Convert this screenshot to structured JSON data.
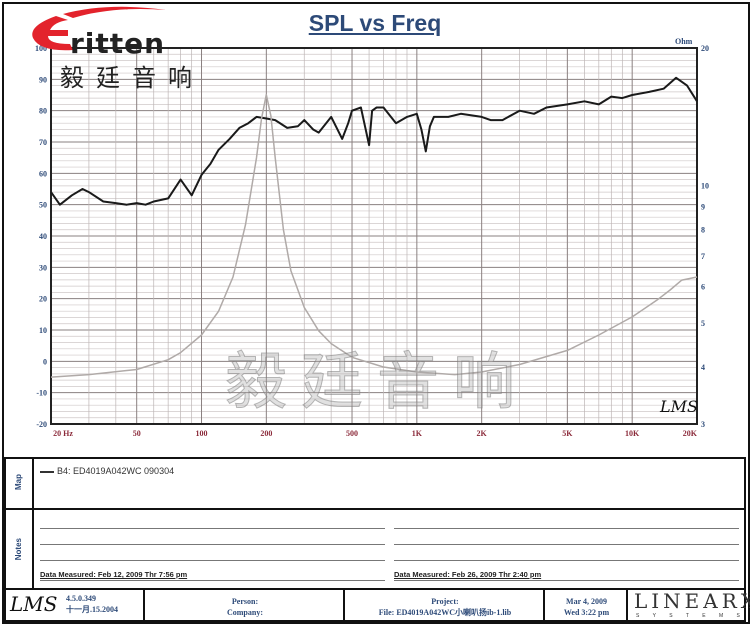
{
  "logo": {
    "brand": "ritten",
    "chinese": "毅廷音响"
  },
  "watermark": "毅廷音响",
  "chart_data": {
    "type": "line",
    "title": "SPL vs Freq",
    "x_scale": "log",
    "xlim": [
      20,
      20000
    ],
    "x_ticks": [
      {
        "v": 20,
        "label": "20 Hz"
      },
      {
        "v": 50,
        "label": "50"
      },
      {
        "v": 100,
        "label": "100"
      },
      {
        "v": 200,
        "label": "200"
      },
      {
        "v": 500,
        "label": "500"
      },
      {
        "v": 1000,
        "label": "1K"
      },
      {
        "v": 2000,
        "label": "2K"
      },
      {
        "v": 5000,
        "label": "5K"
      },
      {
        "v": 10000,
        "label": "10K"
      },
      {
        "v": 20000,
        "label": "20K"
      }
    ],
    "ylim": [
      -20,
      100
    ],
    "y_ticks": [
      100,
      90,
      80,
      70,
      60,
      50,
      40,
      30,
      20,
      10,
      0,
      -10,
      -20
    ],
    "y2_label": "Ohm",
    "y2_scale": "log",
    "y2lim": [
      3,
      20
    ],
    "y2_ticks": [
      20,
      10,
      9,
      8,
      7,
      6,
      5,
      4,
      3
    ],
    "grid": true,
    "series": [
      {
        "name": "B4: ED4019A042WC   090304",
        "axis": "left",
        "color": "#1a1a1a",
        "x": [
          20,
          22,
          25,
          28,
          30,
          35,
          40,
          45,
          50,
          55,
          60,
          70,
          80,
          90,
          100,
          110,
          120,
          135,
          150,
          165,
          180,
          200,
          220,
          250,
          280,
          300,
          330,
          350,
          400,
          450,
          480,
          500,
          550,
          600,
          620,
          650,
          700,
          800,
          900,
          1000,
          1050,
          1100,
          1150,
          1200,
          1400,
          1600,
          2000,
          2200,
          2500,
          3000,
          3500,
          4000,
          5000,
          6000,
          7000,
          8000,
          9000,
          10000,
          12000,
          14000,
          16000,
          18000,
          20000
        ],
        "y": [
          54,
          50,
          53,
          55,
          54,
          51,
          50.5,
          50,
          50.5,
          50,
          51,
          52,
          58,
          53,
          59.5,
          63,
          67.5,
          71,
          74.5,
          76,
          78,
          77.5,
          77,
          74.5,
          75,
          77,
          74,
          73,
          78,
          71,
          76,
          80,
          81,
          69,
          80,
          81,
          81,
          76,
          78,
          79,
          74,
          67,
          75,
          78,
          78,
          79,
          78,
          77,
          77,
          80,
          79,
          81,
          82,
          83,
          82,
          84.5,
          84,
          85,
          86,
          87,
          90.5,
          88,
          83
        ]
      },
      {
        "name": "impedance",
        "axis": "right",
        "color": "#b0aaa8",
        "x": [
          20,
          30,
          50,
          70,
          80,
          100,
          120,
          140,
          160,
          180,
          190,
          200,
          210,
          220,
          240,
          260,
          300,
          350,
          400,
          500,
          700,
          1000,
          1500,
          2000,
          3000,
          5000,
          7000,
          10000,
          13000,
          15000,
          17000,
          20000
        ],
        "y": [
          3.8,
          3.85,
          3.95,
          4.15,
          4.3,
          4.7,
          5.3,
          6.3,
          8.2,
          11.5,
          14,
          15.8,
          14.2,
          11.5,
          8,
          6.5,
          5.4,
          4.8,
          4.5,
          4.2,
          4.0,
          3.9,
          3.85,
          3.9,
          4.05,
          4.35,
          4.7,
          5.15,
          5.6,
          5.9,
          6.2,
          6.3
        ]
      }
    ]
  },
  "map": {
    "label": "Map",
    "legend": "B4: ED4019A042WC   090304"
  },
  "notes": {
    "label": "Notes",
    "left_measured": "Data Measured: Feb 12, 2009  Thr  7:56 pm",
    "right_measured": "Data Measured: Feb 26, 2009  Thr  2:40 pm"
  },
  "footer": {
    "lms": "LMS",
    "version": "4.5.0.349",
    "build_date": "十一月.15.2004",
    "person": "Person:",
    "company": "Company:",
    "project": "Project:",
    "file": "File: ED4019A042WC小喇叭扬ib-1.lib",
    "date": "Mar  4, 2009",
    "time": "Wed  3:22 pm",
    "brand": "LINEARX",
    "brand_sub": "S Y S T E M S"
  },
  "chart_badge": "LMS"
}
